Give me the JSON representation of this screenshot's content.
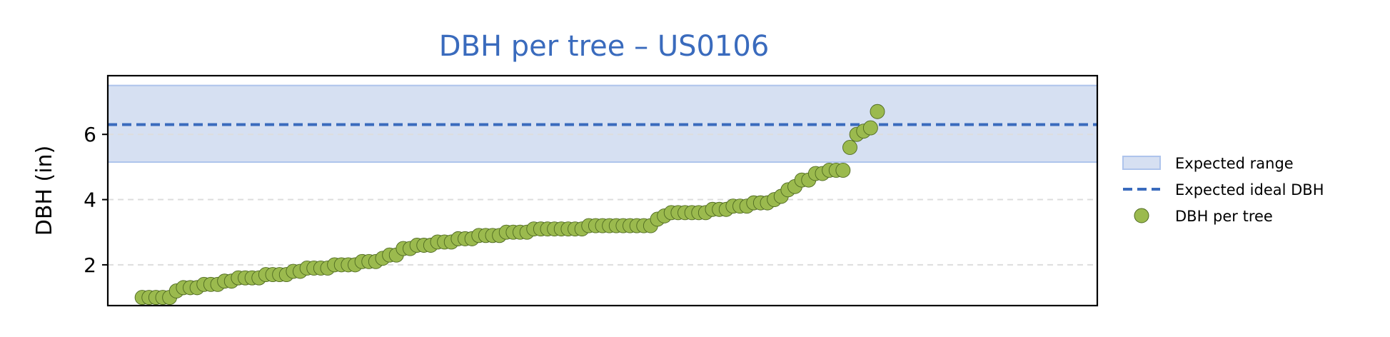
{
  "chart_data": {
    "type": "scatter",
    "title": "DBH per tree – US0106",
    "xlabel": "",
    "ylabel": "DBH (in)",
    "ylim": [
      0.75,
      7.8
    ],
    "xlim": [
      -5,
      139
    ],
    "yticks": [
      2,
      4,
      6
    ],
    "ytick_labels": [
      "2",
      "4",
      "6"
    ],
    "grid": "horizontal dashed",
    "legend_placement": "right, outside plot",
    "expected_range": [
      5.15,
      7.5
    ],
    "expected_ideal": 6.3,
    "series": [
      {
        "name": "DBH per tree",
        "values": [
          1.0,
          1.0,
          1.0,
          1.0,
          1.0,
          1.2,
          1.3,
          1.3,
          1.3,
          1.4,
          1.4,
          1.4,
          1.5,
          1.5,
          1.6,
          1.6,
          1.6,
          1.6,
          1.7,
          1.7,
          1.7,
          1.7,
          1.8,
          1.8,
          1.9,
          1.9,
          1.9,
          1.9,
          2.0,
          2.0,
          2.0,
          2.0,
          2.1,
          2.1,
          2.1,
          2.2,
          2.3,
          2.3,
          2.5,
          2.5,
          2.6,
          2.6,
          2.6,
          2.7,
          2.7,
          2.7,
          2.8,
          2.8,
          2.8,
          2.9,
          2.9,
          2.9,
          2.9,
          3.0,
          3.0,
          3.0,
          3.0,
          3.1,
          3.1,
          3.1,
          3.1,
          3.1,
          3.1,
          3.1,
          3.1,
          3.2,
          3.2,
          3.2,
          3.2,
          3.2,
          3.2,
          3.2,
          3.2,
          3.2,
          3.2,
          3.4,
          3.5,
          3.6,
          3.6,
          3.6,
          3.6,
          3.6,
          3.6,
          3.7,
          3.7,
          3.7,
          3.8,
          3.8,
          3.8,
          3.9,
          3.9,
          3.9,
          4.0,
          4.1,
          4.3,
          4.4,
          4.6,
          4.6,
          4.8,
          4.8,
          4.9,
          4.9,
          4.9,
          5.6,
          6.0,
          6.1,
          6.2,
          6.7
        ]
      }
    ],
    "legend": [
      "Expected range",
      "Expected ideal DBH",
      "DBH per tree"
    ]
  },
  "colors": {
    "title": "#3a6bbd",
    "range_fill": "#d6e0f2",
    "range_edge": "#aec4ec",
    "ideal_line": "#3a6bbd",
    "point_fill": "#9bba4e",
    "point_edge": "#4f6a22",
    "grid": "#dddddd"
  }
}
